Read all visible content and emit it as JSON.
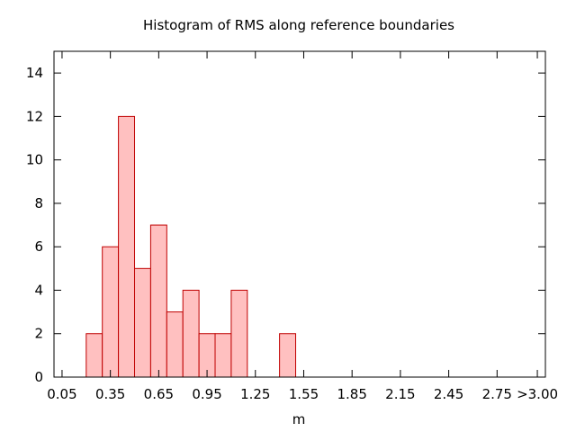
{
  "chart_data": {
    "type": "bar",
    "title": "Histogram of RMS along reference boundaries",
    "xlabel": "m",
    "ylabel": "",
    "bin_width": 0.1,
    "bins": [
      {
        "x": 0.25,
        "count": 2
      },
      {
        "x": 0.35,
        "count": 6
      },
      {
        "x": 0.45,
        "count": 12
      },
      {
        "x": 0.55,
        "count": 5
      },
      {
        "x": 0.65,
        "count": 7
      },
      {
        "x": 0.75,
        "count": 3
      },
      {
        "x": 0.85,
        "count": 4
      },
      {
        "x": 0.95,
        "count": 2
      },
      {
        "x": 1.05,
        "count": 2
      },
      {
        "x": 1.15,
        "count": 4
      },
      {
        "x": 1.45,
        "count": 2
      }
    ],
    "xlim": [
      0,
      3.05
    ],
    "ylim": [
      0,
      15
    ],
    "x_ticks": [
      {
        "value": 0.05,
        "label": "0.05"
      },
      {
        "value": 0.35,
        "label": "0.35"
      },
      {
        "value": 0.65,
        "label": "0.65"
      },
      {
        "value": 0.95,
        "label": "0.95"
      },
      {
        "value": 1.25,
        "label": "1.25"
      },
      {
        "value": 1.55,
        "label": "1.55"
      },
      {
        "value": 1.85,
        "label": "1.85"
      },
      {
        "value": 2.15,
        "label": "2.15"
      },
      {
        "value": 2.45,
        "label": "2.45"
      },
      {
        "value": 2.75,
        "label": "2.75"
      },
      {
        "value": 3.0,
        "label": ">3.00"
      }
    ],
    "y_ticks": [
      0,
      2,
      4,
      6,
      8,
      10,
      12,
      14
    ],
    "grid": false,
    "legend": "none",
    "colors": {
      "bar_fill": "#ffc0c0",
      "bar_stroke": "#c00000",
      "axis": "#000000"
    }
  }
}
